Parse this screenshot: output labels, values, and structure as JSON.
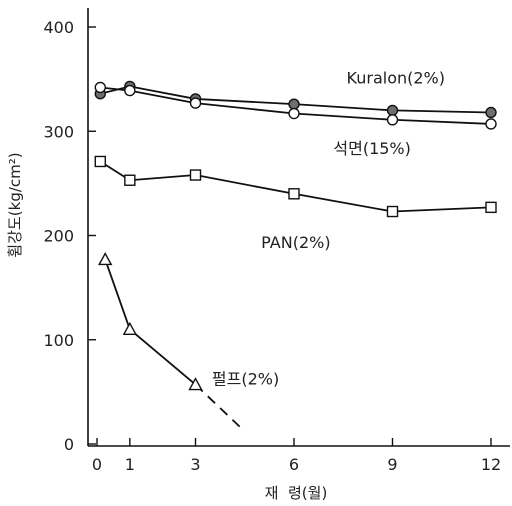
{
  "chart_data": {
    "type": "line",
    "title": "",
    "xlabel": "재  령(월)",
    "ylabel": "휨강도(kg/cm²)",
    "xlim": [
      -0.3,
      12.5
    ],
    "ylim": [
      0,
      420
    ],
    "x_ticks": [
      0,
      1,
      3,
      6,
      9,
      12
    ],
    "y_ticks": [
      0,
      100,
      200,
      300,
      400
    ],
    "grid": false,
    "series": [
      {
        "name": "Kuralon(2%)",
        "marker": "filled-circle",
        "color": "#111111",
        "x": [
          0.1,
          1,
          3,
          6,
          9,
          12
        ],
        "y": [
          336,
          343,
          331,
          326,
          320,
          318
        ],
        "dashed_extension": null
      },
      {
        "name": "석면(15%)",
        "marker": "open-circle",
        "color": "#111111",
        "x": [
          0.1,
          1,
          3,
          6,
          9,
          12
        ],
        "y": [
          342,
          339,
          327,
          317,
          311,
          307
        ],
        "dashed_extension": null
      },
      {
        "name": "PAN(2%)",
        "marker": "square",
        "color": "#111111",
        "x": [
          0.1,
          1,
          3,
          6,
          9,
          12
        ],
        "y": [
          271,
          253,
          258,
          240,
          223,
          227
        ],
        "dashed_extension": null
      },
      {
        "name": "펄프(2%)",
        "marker": "triangle",
        "color": "#111111",
        "x": [
          0.25,
          1,
          3
        ],
        "y": [
          177,
          110,
          57
        ],
        "dashed_extension": {
          "x": [
            3,
            4.5
          ],
          "y": [
            57,
            12
          ]
        }
      }
    ],
    "series_labels": [
      {
        "text": "Kuralon(2%)",
        "x": 7.6,
        "y": 346
      },
      {
        "text": "석면(15%)",
        "x": 7.2,
        "y": 278
      },
      {
        "text": "PAN(2%)",
        "x": 5.0,
        "y": 188
      },
      {
        "text": "펄프(2%)",
        "x": 3.5,
        "y": 57
      }
    ]
  }
}
